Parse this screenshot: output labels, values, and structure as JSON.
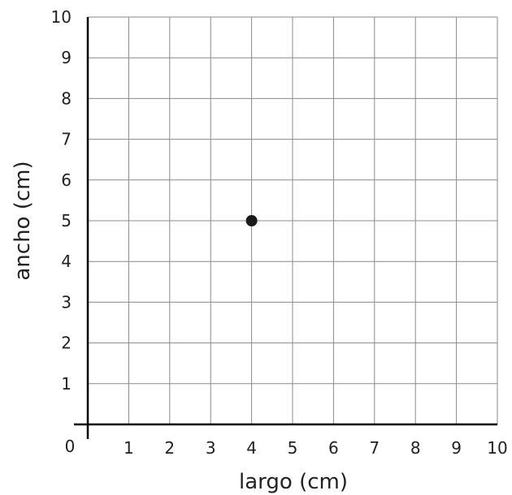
{
  "chart_data": {
    "type": "scatter",
    "xlabel": "largo (cm)",
    "ylabel": "ancho (cm)",
    "xlim": [
      0,
      10
    ],
    "ylim": [
      0,
      10
    ],
    "x_ticks": [
      "1",
      "2",
      "3",
      "4",
      "5",
      "6",
      "7",
      "8",
      "9",
      "10"
    ],
    "y_ticks": [
      "1",
      "2",
      "3",
      "4",
      "5",
      "6",
      "7",
      "8",
      "9",
      "10"
    ],
    "origin_label": "0",
    "grid": true,
    "points": [
      {
        "x": 4,
        "y": 5
      }
    ],
    "point_color": "#1a1a1a"
  }
}
